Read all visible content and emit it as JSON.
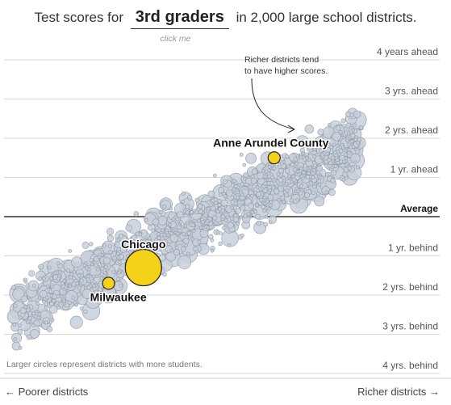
{
  "header": {
    "prefix": "Test scores for",
    "grade_selector": "3rd graders",
    "suffix": "in 2,000 large school districts.",
    "hint": "click me"
  },
  "colors": {
    "bubble_fill": "#c9d0db",
    "bubble_stroke": "#8f98a6",
    "highlight_fill": "#f5d21a",
    "highlight_stroke": "#222222",
    "gridline": "#d6d6d6",
    "average_line": "#333333"
  },
  "chart_data": {
    "type": "scatter",
    "title": "Test scores for 3rd graders in 2,000 large school districts.",
    "x_axis": {
      "left_label": "← Poorer districts",
      "right_label": "Richer districts →",
      "range": [
        0,
        100
      ]
    },
    "y_axis": {
      "unit": "grade levels relative to average",
      "ylim": [
        -4.3,
        4.3
      ],
      "ticks": [
        {
          "value": 4,
          "label": "4 years ahead"
        },
        {
          "value": 3,
          "label": "3 yrs. ahead"
        },
        {
          "value": 2,
          "label": "2 yrs. ahead"
        },
        {
          "value": 1,
          "label": "1 yr. ahead"
        },
        {
          "value": 0,
          "label": "Average"
        },
        {
          "value": -1,
          "label": "1 yr. behind"
        },
        {
          "value": -2,
          "label": "2 yrs. behind"
        },
        {
          "value": -3,
          "label": "3 yrs. behind"
        },
        {
          "value": -4,
          "label": "4 yrs. behind"
        }
      ]
    },
    "highlighted": [
      {
        "name": "Anne Arundel County",
        "x": 62,
        "y": 1.5,
        "size": 3
      },
      {
        "name": "Chicago",
        "x": 32,
        "y": -1.3,
        "size": 9
      },
      {
        "name": "Milwaukee",
        "x": 24,
        "y": -1.7,
        "size": 3
      }
    ],
    "trend": {
      "x": [
        0,
        100
      ],
      "y": [
        -2.6,
        2.9
      ]
    },
    "annotation": {
      "lines": [
        "Richer districts tend",
        "to have higher scores."
      ]
    },
    "size_note": "Larger circles represent districts with more students."
  }
}
